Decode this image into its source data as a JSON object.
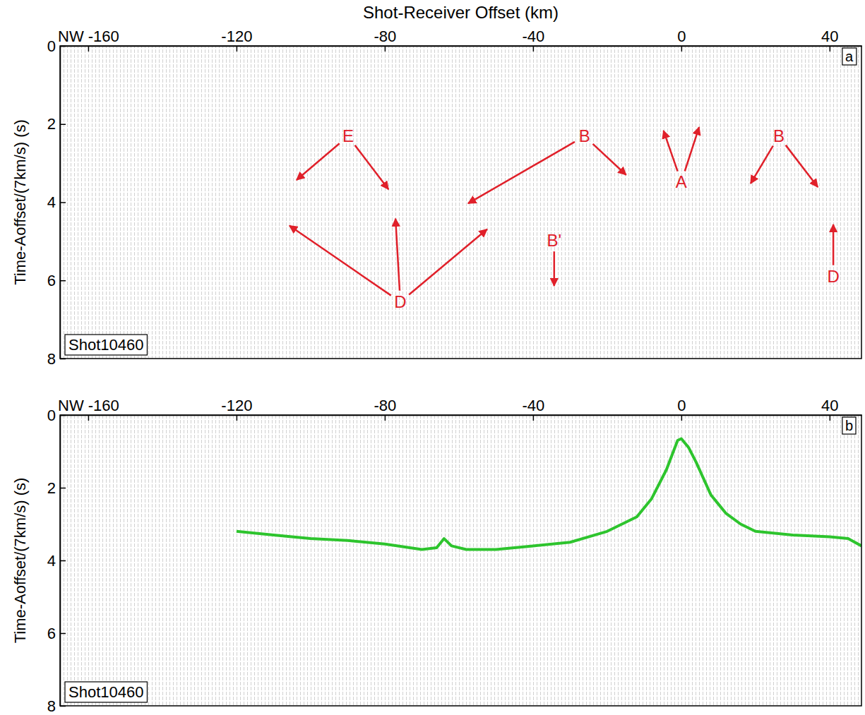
{
  "chart_data": [
    {
      "type": "line",
      "panel": "a",
      "shot": "Shot10460",
      "xlabel": "Shot-Receiver Offset (km)",
      "ylabel": "Time-Aoffset/(7km/s) (s)",
      "xlim": [
        -167.6,
        48.6
      ],
      "ylim": [
        8,
        0
      ],
      "xticks": [
        {
          "value": -160,
          "label": "NW -160"
        },
        -120,
        -80,
        -40,
        0,
        40
      ],
      "yticks": [
        0,
        2,
        4,
        6,
        8
      ],
      "annotations": [
        {
          "text": "E",
          "x": -89.9,
          "y": 2.31,
          "arrows": [
            [
              -103.8,
              3.43
            ],
            [
              -79,
              3.67
            ]
          ]
        },
        {
          "text": "B",
          "x": -26.1,
          "y": 2.31,
          "arrows": [
            [
              -57.5,
              4.03
            ],
            [
              -14.9,
              3.3
            ]
          ]
        },
        {
          "text": "A",
          "x": 0,
          "y": 3.48,
          "arrows": [
            [
              -4.8,
              2.17
            ],
            [
              4.8,
              2.08
            ]
          ]
        },
        {
          "text": "B",
          "x": 26.3,
          "y": 2.31,
          "arrows": [
            [
              18.7,
              3.52
            ],
            [
              36.8,
              3.61
            ]
          ]
        },
        {
          "text": "D",
          "x": -75.8,
          "y": 6.55,
          "arrows": [
            [
              -105.7,
              4.6
            ],
            [
              -77.1,
              4.42
            ],
            [
              -52.4,
              4.69
            ]
          ]
        },
        {
          "text": "D",
          "x": 41,
          "y": 5.9,
          "arrows": [
            [
              41,
              4.57
            ]
          ]
        },
        {
          "text": "B'",
          "x": -34.3,
          "y": 4.97,
          "arrows": [
            [
              -34.3,
              6.14
            ]
          ]
        }
      ]
    },
    {
      "type": "line",
      "panel": "b",
      "shot": "Shot10460",
      "ylabel": "Time-Aoffset/(7km/s) (s)",
      "xlim": [
        -167.6,
        48.6
      ],
      "ylim": [
        8,
        0
      ],
      "xticks": [
        {
          "value": -160,
          "label": "NW -160"
        },
        -120,
        -80,
        -40,
        0,
        40
      ],
      "yticks": [
        0,
        2,
        4,
        6,
        8
      ],
      "x": [
        -120,
        -110,
        -100,
        -90,
        -80,
        -70,
        -66,
        -64,
        -62,
        -58,
        -50,
        -40,
        -30,
        -20,
        -12,
        -8,
        -4,
        -1,
        0,
        2,
        4,
        8,
        12,
        16,
        20,
        30,
        40,
        45,
        48.6
      ],
      "series": [
        {
          "color": "#2dc42d",
          "line_style": "solid",
          "values": [
            3.2,
            3.3,
            3.4,
            3.45,
            3.55,
            3.7,
            3.65,
            3.4,
            3.6,
            3.7,
            3.7,
            3.6,
            3.5,
            3.2,
            2.8,
            2.3,
            1.5,
            0.7,
            0.65,
            0.9,
            1.3,
            2.2,
            2.7,
            3.0,
            3.2,
            3.3,
            3.35,
            3.4,
            3.6
          ]
        }
      ]
    }
  ]
}
